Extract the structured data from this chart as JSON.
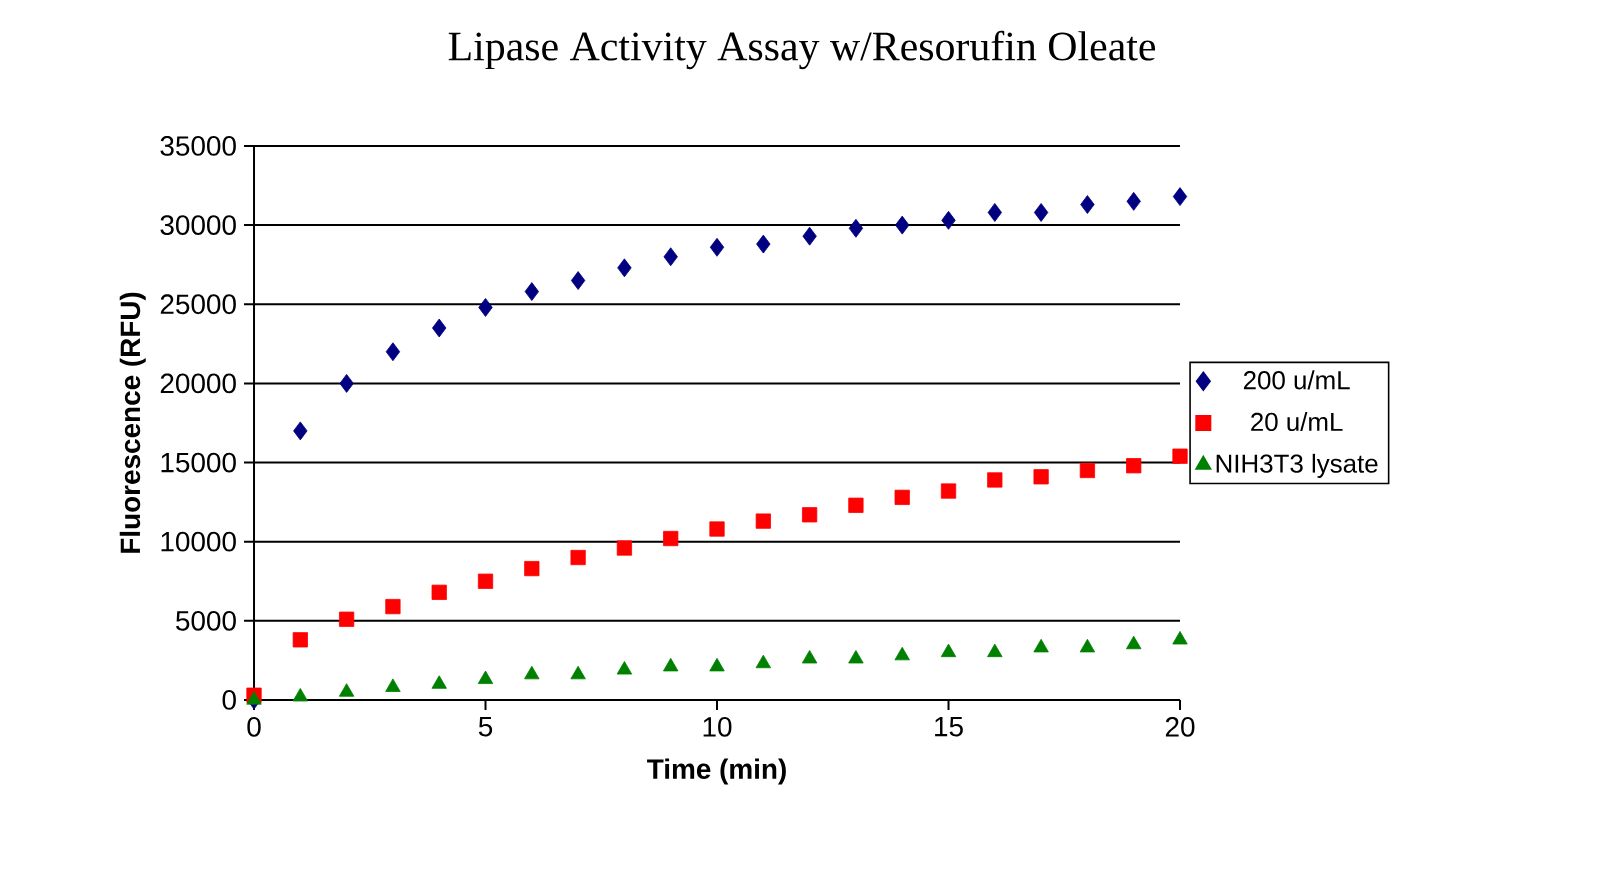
{
  "chart_data": {
    "type": "scatter",
    "title": "Lipase Activity Assay w/Resorufin Oleate",
    "xlabel": "Time (min)",
    "ylabel": "Fluorescence (RFU)",
    "x": [
      0,
      1,
      2,
      3,
      4,
      5,
      6,
      7,
      8,
      9,
      10,
      11,
      12,
      13,
      14,
      15,
      16,
      17,
      18,
      19,
      20
    ],
    "series": [
      {
        "name": "200 u/mL",
        "color": "#000080",
        "marker": "diamond",
        "values": [
          0,
          17000,
          20000,
          22000,
          23500,
          24800,
          25800,
          26500,
          27300,
          28000,
          28600,
          28800,
          29300,
          29800,
          30000,
          30300,
          30800,
          30800,
          31300,
          31500,
          31800
        ]
      },
      {
        "name": "20 u/mL",
        "color": "#ff0000",
        "marker": "square",
        "values": [
          300,
          3800,
          5100,
          5900,
          6800,
          7500,
          8300,
          9000,
          9600,
          10200,
          10800,
          11300,
          11700,
          12300,
          12800,
          13200,
          13900,
          14100,
          14500,
          14800,
          15400
        ]
      },
      {
        "name": "NIH3T3 lysate",
        "color": "#008000",
        "marker": "triangle",
        "values": [
          0,
          200,
          500,
          800,
          1000,
          1300,
          1600,
          1600,
          1900,
          2100,
          2100,
          2300,
          2600,
          2600,
          2800,
          3000,
          3000,
          3300,
          3300,
          3500,
          3800
        ]
      }
    ],
    "xlim": [
      0,
      20
    ],
    "xticks": [
      0,
      5,
      10,
      15,
      20
    ],
    "ylim": [
      0,
      35000
    ],
    "yticks": [
      0,
      5000,
      10000,
      15000,
      20000,
      25000,
      30000,
      35000
    ],
    "grid": "y",
    "legend": "right"
  }
}
